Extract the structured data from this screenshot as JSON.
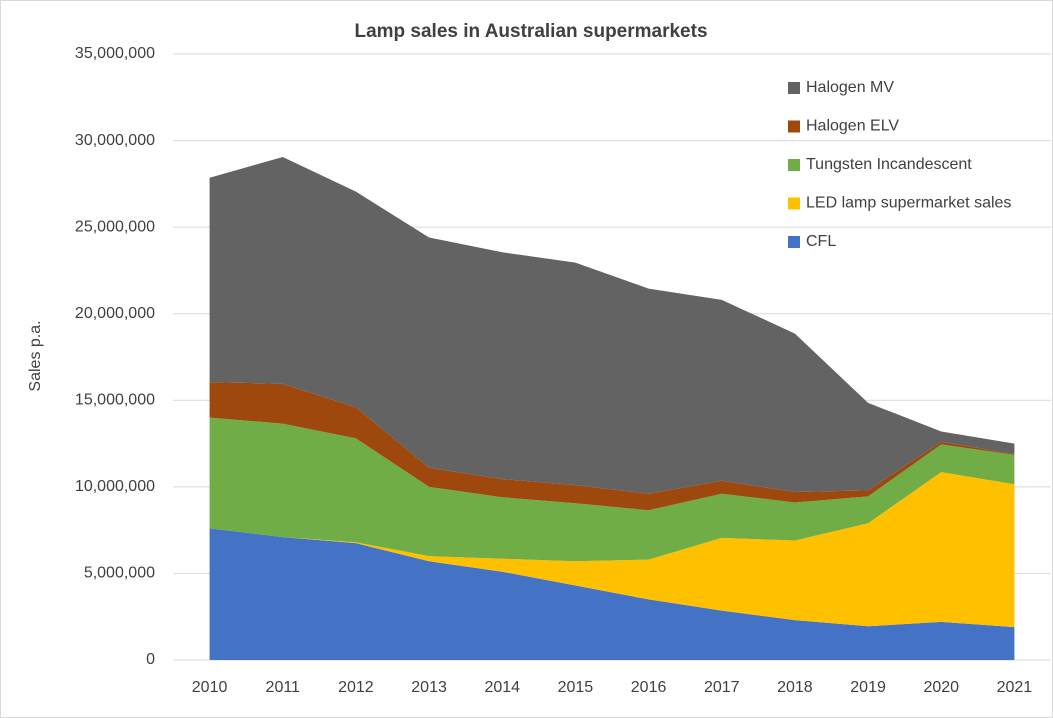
{
  "chart_data": {
    "type": "stacked_area",
    "title": "Lamp sales in Australian supermarkets",
    "y_label": "Sales p.a.",
    "categories": [
      "2010",
      "2011",
      "2012",
      "2013",
      "2014",
      "2015",
      "2016",
      "2017",
      "2018",
      "2019",
      "2020",
      "2021"
    ],
    "series": [
      {
        "name": "CFL",
        "color": "#4472c4",
        "values": [
          7600000,
          7100000,
          6750000,
          5700000,
          5100000,
          4300000,
          3500000,
          2850000,
          2300000,
          1950000,
          2200000,
          1900000
        ]
      },
      {
        "name": "LED lamp supermarket sales",
        "color": "#ffc000",
        "values": [
          0,
          0,
          50000,
          300000,
          750000,
          1400000,
          2300000,
          4200000,
          4600000,
          5950000,
          8650000,
          8250000
        ]
      },
      {
        "name": "Tungsten Incandescent",
        "color": "#70ad47",
        "values": [
          6400000,
          6550000,
          6000000,
          4000000,
          3550000,
          3350000,
          2850000,
          2550000,
          2200000,
          1550000,
          1600000,
          1700000
        ]
      },
      {
        "name": "Halogen ELV",
        "color": "#9e480e",
        "values": [
          2050000,
          2300000,
          1800000,
          1100000,
          1050000,
          1050000,
          950000,
          750000,
          600000,
          350000,
          150000,
          50000
        ]
      },
      {
        "name": "Halogen MV",
        "color": "#636363",
        "values": [
          11800000,
          13100000,
          12450000,
          13300000,
          13100000,
          12850000,
          11850000,
          10450000,
          9150000,
          5050000,
          600000,
          600000
        ]
      }
    ],
    "ylim": [
      0,
      35000000
    ],
    "yticks": [
      0,
      {
        "value": 5000000,
        "label": "5,000,000"
      },
      {
        "value": 10000000,
        "label": "10,000,000"
      },
      {
        "value": 15000000,
        "label": "15,000,000"
      },
      {
        "value": 20000000,
        "label": "20,000,000"
      },
      {
        "value": 25000000,
        "label": "25,000,000"
      },
      {
        "value": 30000000,
        "label": "30,000,000"
      },
      {
        "value": 35000000,
        "label": "35,000,000"
      }
    ],
    "grid": true,
    "legend": "right"
  }
}
